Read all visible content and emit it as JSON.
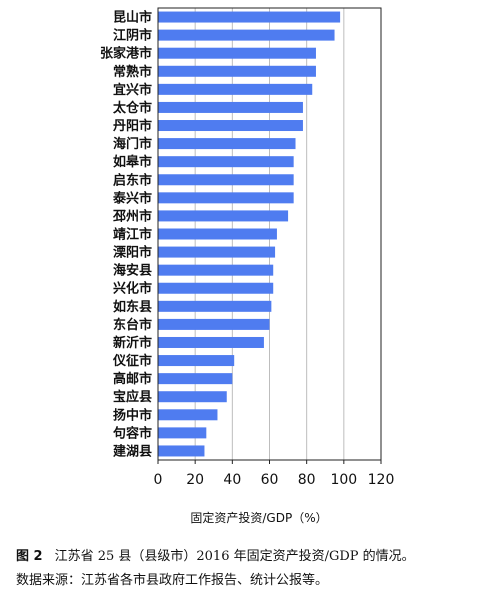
{
  "chart_data": {
    "type": "bar",
    "orientation": "horizontal",
    "categories": [
      "昆山市",
      "江阴市",
      "张家港市",
      "常熟市",
      "宜兴市",
      "太仓市",
      "丹阳市",
      "海门市",
      "如皋市",
      "启东市",
      "泰兴市",
      "邳州市",
      "靖江市",
      "溧阳市",
      "海安县",
      "兴化市",
      "如东县",
      "东台市",
      "新沂市",
      "仪征市",
      "高邮市",
      "宝应县",
      "扬中市",
      "句容市",
      "建湖县"
    ],
    "values": [
      98,
      95,
      85,
      85,
      83,
      78,
      78,
      74,
      73,
      73,
      73,
      70,
      64,
      63,
      62,
      62,
      61,
      60,
      57,
      41,
      40,
      37,
      32,
      26,
      25
    ],
    "xlabel": "固定资产投资/GDP（%）",
    "xlim": [
      0,
      120
    ],
    "xticks": [
      "0",
      "20",
      "40",
      "60",
      "80",
      "100",
      "120"
    ],
    "grid": "vertical",
    "bar_color": "#4f7cf0",
    "grid_color": "#bdbdbd"
  },
  "caption": {
    "figure_label": "图 2",
    "title_line": "江苏省 25 县（县级市）2016 年固定资产投资/GDP 的情况。",
    "source_line": "数据来源：江苏省各市县政府工作报告、统计公报等。"
  }
}
